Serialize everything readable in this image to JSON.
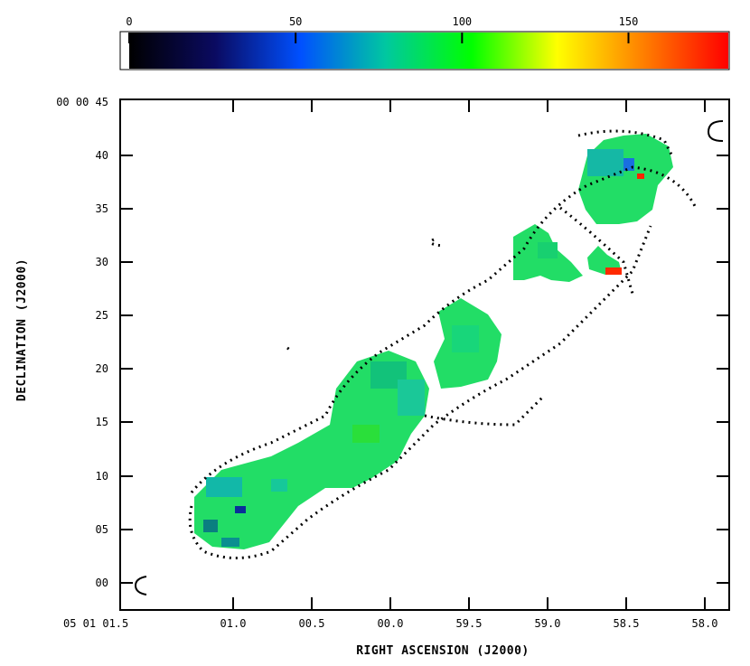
{
  "chart_data": {
    "type": "heatmap",
    "title": "",
    "xlabel": "RIGHT ASCENSION (J2000)",
    "ylabel": "DECLINATION (J2000)",
    "colorbar": {
      "ticks": [
        "0",
        "50",
        "100",
        "150"
      ],
      "tick_values": [
        0,
        50,
        100,
        150
      ],
      "range": [
        0,
        180
      ],
      "colormap": [
        "#000000",
        "#0a0a60",
        "#0050ff",
        "#00c8a0",
        "#00ff00",
        "#ffff00",
        "#ff8000",
        "#ff0000"
      ]
    },
    "x_ticks": [
      "05 01 01.5",
      "01.0",
      "00.5",
      "00.0",
      "59.5",
      "59.0",
      "58.5",
      "58.0"
    ],
    "x_tick_values": [
      0,
      1,
      2,
      3,
      4,
      5,
      6,
      7
    ],
    "y_ticks": [
      "00 00 45",
      "40",
      "35",
      "30",
      "25",
      "20",
      "15",
      "10",
      "05",
      "00"
    ],
    "y_tick_values": [
      45,
      40,
      35,
      30,
      25,
      20,
      15,
      10,
      5,
      0
    ],
    "series": []
  },
  "colors": {
    "dominant_fill": "#22dd66",
    "contour": "#000000",
    "background": "#ffffff"
  }
}
